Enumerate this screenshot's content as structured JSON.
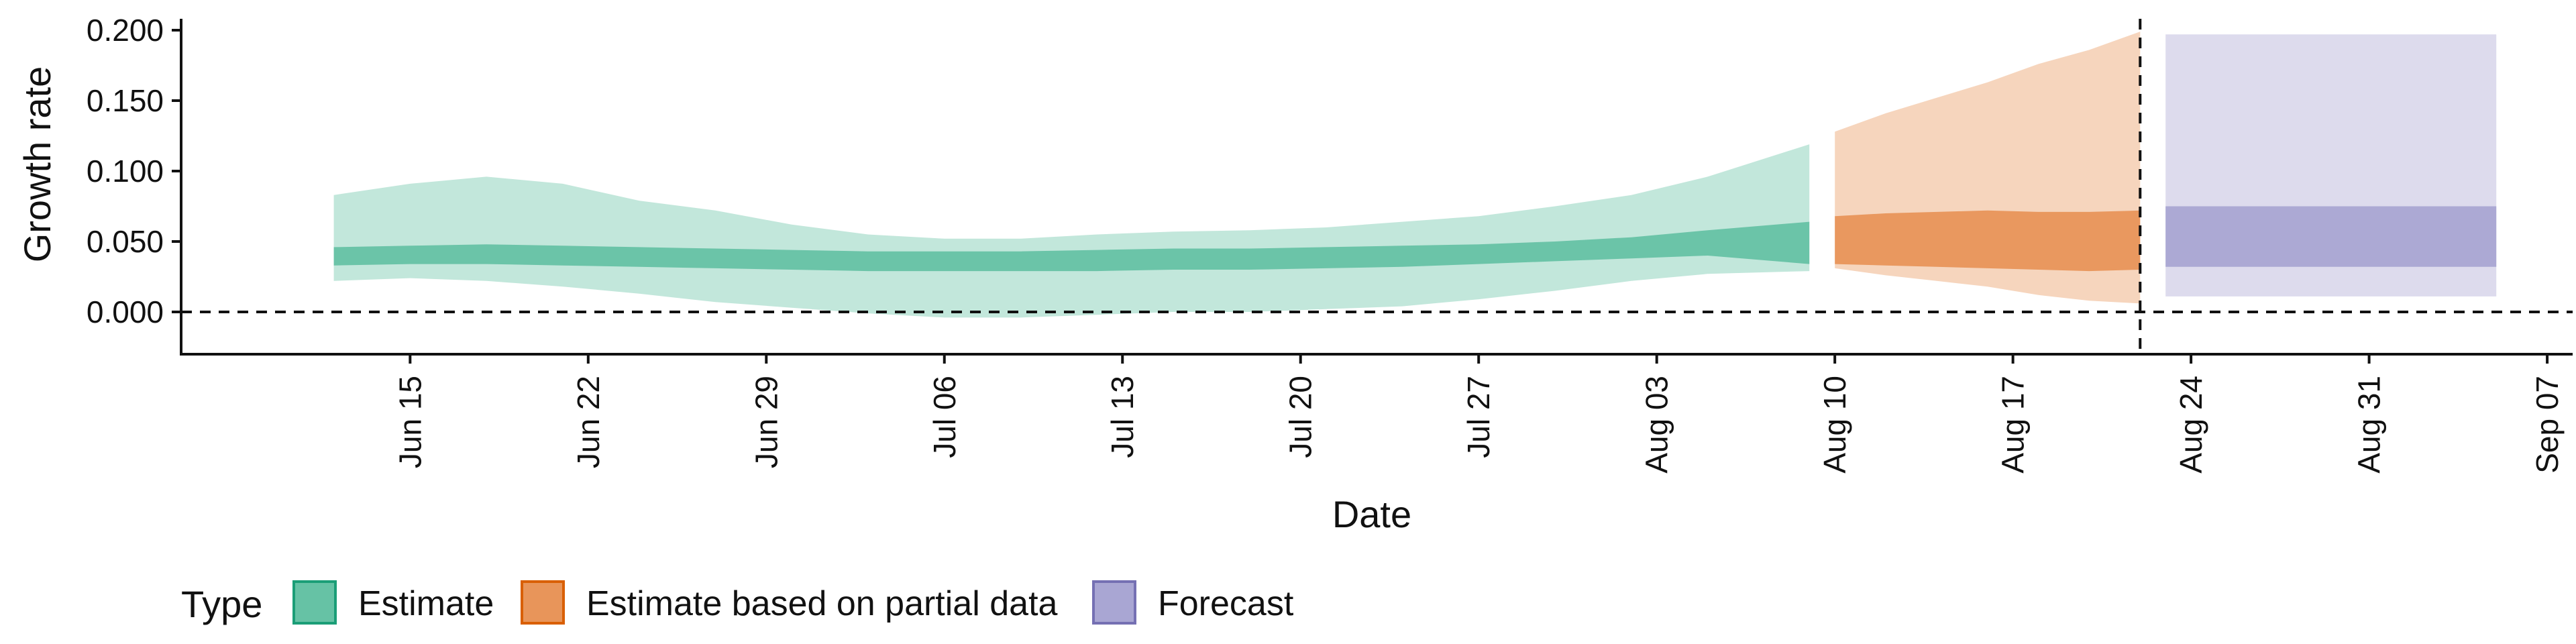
{
  "chart_data": {
    "type": "area",
    "title": "",
    "xlabel": "Date",
    "ylabel": "Growth rate",
    "xlim": [
      "2020-06-06",
      "2020-09-08"
    ],
    "ylim": [
      -0.03,
      0.21
    ],
    "x_ticks": [
      {
        "date": "2020-06-15",
        "label": "Jun 15"
      },
      {
        "date": "2020-06-22",
        "label": "Jun 22"
      },
      {
        "date": "2020-06-29",
        "label": "Jun 29"
      },
      {
        "date": "2020-07-06",
        "label": "Jul 06"
      },
      {
        "date": "2020-07-13",
        "label": "Jul 13"
      },
      {
        "date": "2020-07-20",
        "label": "Jul 20"
      },
      {
        "date": "2020-07-27",
        "label": "Jul 27"
      },
      {
        "date": "2020-08-03",
        "label": "Aug 03"
      },
      {
        "date": "2020-08-10",
        "label": "Aug 10"
      },
      {
        "date": "2020-08-17",
        "label": "Aug 17"
      },
      {
        "date": "2020-08-24",
        "label": "Aug 24"
      },
      {
        "date": "2020-08-31",
        "label": "Aug 31"
      },
      {
        "date": "2020-09-07",
        "label": "Sep 07"
      }
    ],
    "y_ticks": [
      {
        "value": 0.0,
        "label": "0.000"
      },
      {
        "value": 0.05,
        "label": "0.050"
      },
      {
        "value": 0.1,
        "label": "0.100"
      },
      {
        "value": 0.15,
        "label": "0.150"
      },
      {
        "value": 0.2,
        "label": "0.200"
      }
    ],
    "reference_lines": {
      "horizontal_y": 0.0,
      "vertical_date": "2020-08-22"
    },
    "grid": false,
    "legend": {
      "position": "bottom",
      "title": "Type",
      "entries": [
        {
          "label": "Estimate",
          "fill": "#66C2A5",
          "stroke": "#1B9E77"
        },
        {
          "label": "Estimate based on partial data",
          "fill": "#E8955A",
          "stroke": "#D95F02"
        },
        {
          "label": "Forecast",
          "fill": "#A9A6D3",
          "stroke": "#7570B3"
        }
      ]
    },
    "series": [
      {
        "name": "Estimate",
        "color": "#66C2A5",
        "points": [
          {
            "date": "2020-06-12",
            "lo90": 0.022,
            "lo50": 0.033,
            "hi50": 0.046,
            "hi90": 0.083
          },
          {
            "date": "2020-06-15",
            "lo90": 0.024,
            "lo50": 0.034,
            "hi50": 0.047,
            "hi90": 0.091
          },
          {
            "date": "2020-06-18",
            "lo90": 0.022,
            "lo50": 0.034,
            "hi50": 0.048,
            "hi90": 0.096
          },
          {
            "date": "2020-06-21",
            "lo90": 0.018,
            "lo50": 0.033,
            "hi50": 0.047,
            "hi90": 0.091
          },
          {
            "date": "2020-06-24",
            "lo90": 0.013,
            "lo50": 0.032,
            "hi50": 0.046,
            "hi90": 0.079
          },
          {
            "date": "2020-06-27",
            "lo90": 0.007,
            "lo50": 0.031,
            "hi50": 0.045,
            "hi90": 0.072
          },
          {
            "date": "2020-06-30",
            "lo90": 0.003,
            "lo50": 0.03,
            "hi50": 0.044,
            "hi90": 0.062
          },
          {
            "date": "2020-07-03",
            "lo90": -0.001,
            "lo50": 0.029,
            "hi50": 0.043,
            "hi90": 0.055
          },
          {
            "date": "2020-07-06",
            "lo90": -0.004,
            "lo50": 0.029,
            "hi50": 0.043,
            "hi90": 0.052
          },
          {
            "date": "2020-07-09",
            "lo90": -0.004,
            "lo50": 0.029,
            "hi50": 0.043,
            "hi90": 0.052
          },
          {
            "date": "2020-07-12",
            "lo90": -0.002,
            "lo50": 0.029,
            "hi50": 0.044,
            "hi90": 0.055
          },
          {
            "date": "2020-07-15",
            "lo90": 0.0,
            "lo50": 0.03,
            "hi50": 0.045,
            "hi90": 0.057
          },
          {
            "date": "2020-07-18",
            "lo90": 0.0,
            "lo50": 0.03,
            "hi50": 0.045,
            "hi90": 0.058
          },
          {
            "date": "2020-07-21",
            "lo90": 0.002,
            "lo50": 0.031,
            "hi50": 0.046,
            "hi90": 0.06
          },
          {
            "date": "2020-07-24",
            "lo90": 0.004,
            "lo50": 0.032,
            "hi50": 0.047,
            "hi90": 0.064
          },
          {
            "date": "2020-07-27",
            "lo90": 0.009,
            "lo50": 0.034,
            "hi50": 0.048,
            "hi90": 0.068
          },
          {
            "date": "2020-07-30",
            "lo90": 0.015,
            "lo50": 0.036,
            "hi50": 0.05,
            "hi90": 0.075
          },
          {
            "date": "2020-08-02",
            "lo90": 0.022,
            "lo50": 0.038,
            "hi50": 0.053,
            "hi90": 0.083
          },
          {
            "date": "2020-08-05",
            "lo90": 0.027,
            "lo50": 0.04,
            "hi50": 0.058,
            "hi90": 0.096
          },
          {
            "date": "2020-08-09",
            "lo90": 0.029,
            "lo50": 0.034,
            "hi50": 0.064,
            "hi90": 0.119
          }
        ]
      },
      {
        "name": "Estimate based on partial data",
        "color": "#E8955A",
        "points": [
          {
            "date": "2020-08-10",
            "lo90": 0.031,
            "lo50": 0.034,
            "hi50": 0.068,
            "hi90": 0.128
          },
          {
            "date": "2020-08-12",
            "lo90": 0.026,
            "lo50": 0.033,
            "hi50": 0.07,
            "hi90": 0.141
          },
          {
            "date": "2020-08-14",
            "lo90": 0.022,
            "lo50": 0.032,
            "hi50": 0.071,
            "hi90": 0.152
          },
          {
            "date": "2020-08-16",
            "lo90": 0.018,
            "lo50": 0.031,
            "hi50": 0.072,
            "hi90": 0.163
          },
          {
            "date": "2020-08-18",
            "lo90": 0.012,
            "lo50": 0.03,
            "hi50": 0.071,
            "hi90": 0.176
          },
          {
            "date": "2020-08-20",
            "lo90": 0.008,
            "lo50": 0.029,
            "hi50": 0.071,
            "hi90": 0.186
          },
          {
            "date": "2020-08-22",
            "lo90": 0.006,
            "lo50": 0.03,
            "hi50": 0.072,
            "hi90": 0.199
          }
        ]
      },
      {
        "name": "Forecast",
        "color": "#A9A6D3",
        "points": [
          {
            "date": "2020-08-23",
            "lo90": 0.011,
            "lo50": 0.032,
            "hi50": 0.075,
            "hi90": 0.197
          },
          {
            "date": "2020-09-05",
            "lo90": 0.011,
            "lo50": 0.032,
            "hi50": 0.075,
            "hi90": 0.197
          }
        ]
      }
    ]
  }
}
